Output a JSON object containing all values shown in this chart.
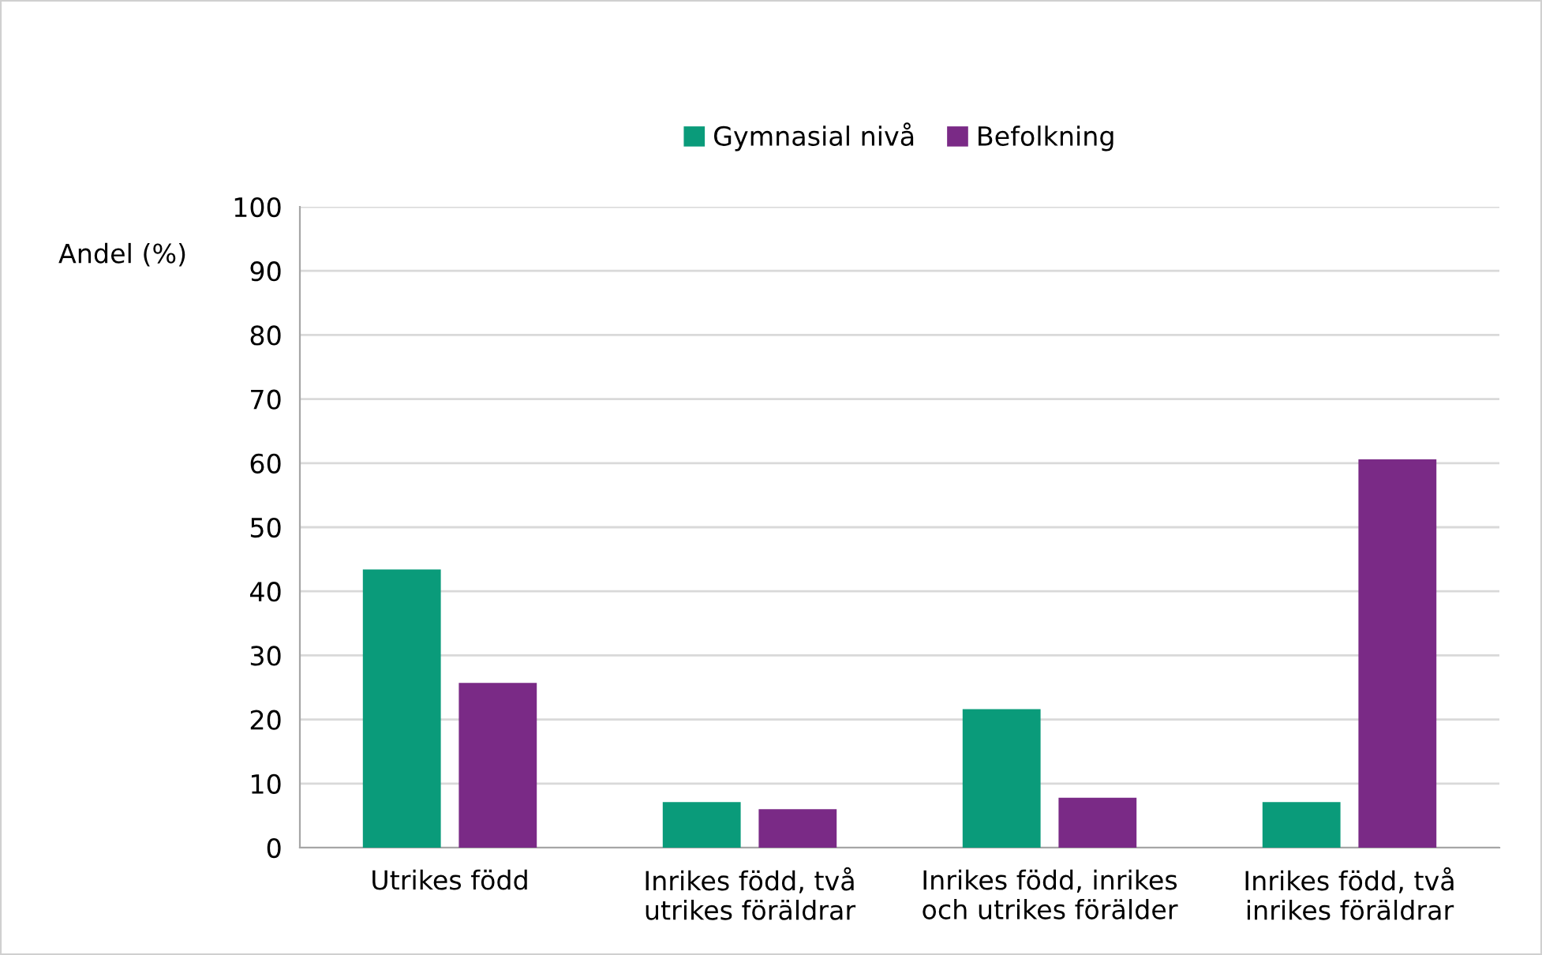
{
  "chart_data": {
    "type": "bar",
    "ylabel": "Andel (%)",
    "categories": [
      "Utrikes född",
      "Inrikes född, två\nutrikes föräldrar",
      "Inrikes född, inrikes\noch utrikes förälder",
      "Inrikes född, två\ninrikes föräldrar"
    ],
    "series": [
      {
        "name": "Gymnasial nivå",
        "color": "#0a9b7a",
        "values": [
          43.4,
          7.1,
          21.6,
          7.1
        ]
      },
      {
        "name": "Befolkning",
        "color": "#7a2a86",
        "values": [
          25.7,
          6.0,
          7.8,
          60.6
        ]
      }
    ],
    "ylim": [
      0,
      100
    ],
    "yticks": [
      0,
      10,
      20,
      30,
      40,
      50,
      60,
      70,
      80,
      90,
      100
    ],
    "grid": "y",
    "legend": "top"
  }
}
